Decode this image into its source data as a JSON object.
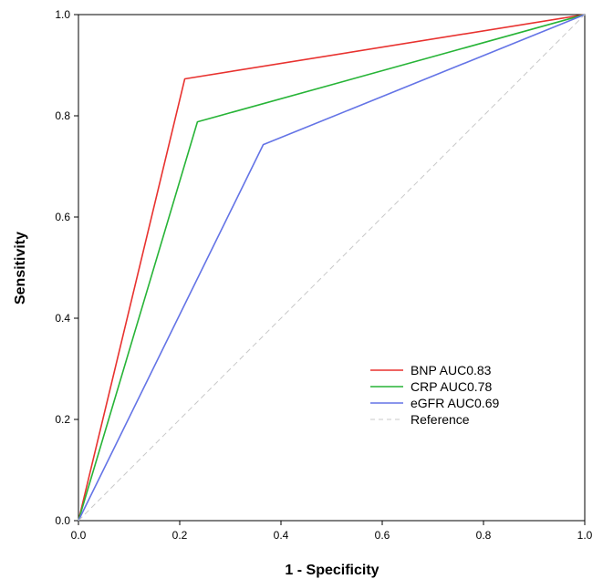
{
  "chart_data": {
    "type": "line",
    "title": "",
    "xlabel": "1 - Specificity",
    "ylabel": "Sensitivity",
    "xlim": [
      0,
      1
    ],
    "ylim": [
      0,
      1
    ],
    "xticks": [
      "0.0",
      "0.2",
      "0.4",
      "0.6",
      "0.8",
      "1.0"
    ],
    "yticks": [
      "0.0",
      "0.2",
      "0.4",
      "0.6",
      "0.8",
      "1.0"
    ],
    "grid": false,
    "legend_position": "bottom-right",
    "series": [
      {
        "name": "BNP  AUC0.83",
        "color": "#e8322f",
        "x": [
          0,
          0.21,
          1.0
        ],
        "y": [
          0,
          0.873,
          1.0
        ]
      },
      {
        "name": "CRP  AUC0.78",
        "color": "#27b437",
        "x": [
          0,
          0.235,
          1.0
        ],
        "y": [
          0,
          0.788,
          1.0
        ]
      },
      {
        "name": "eGFR  AUC0.69",
        "color": "#6474e6",
        "x": [
          0,
          0.365,
          1.0
        ],
        "y": [
          0,
          0.743,
          1.0
        ]
      },
      {
        "name": "Reference",
        "color": "#c8c8c8",
        "dashed": true,
        "x": [
          0,
          1.0
        ],
        "y": [
          0,
          1.0
        ]
      }
    ]
  }
}
